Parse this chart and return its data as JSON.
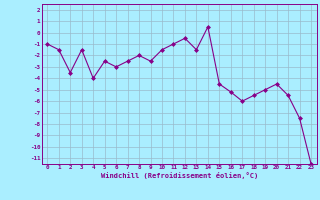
{
  "xlabel": "Windchill (Refroidissement éolien,°C)",
  "x_values": [
    0,
    1,
    2,
    3,
    4,
    5,
    6,
    7,
    8,
    9,
    10,
    11,
    12,
    13,
    14,
    15,
    16,
    17,
    18,
    19,
    20,
    21,
    22,
    23
  ],
  "y_values": [
    -1.0,
    -1.5,
    -3.5,
    -1.5,
    -4.0,
    -2.5,
    -3.0,
    -2.5,
    -2.0,
    -2.5,
    -1.5,
    -1.0,
    -0.5,
    -1.5,
    0.5,
    -4.5,
    -5.2,
    -6.0,
    -5.5,
    -5.0,
    -4.5,
    -5.5,
    -7.5,
    -11.5
  ],
  "line_color": "#880088",
  "marker": "D",
  "marker_size": 2,
  "bg_color": "#aaeeff",
  "grid_color": "#99bbcc",
  "ylim": [
    -11.5,
    2.5
  ],
  "ytick_vals": [
    2,
    1,
    0,
    -1,
    -2,
    -3,
    -4,
    -5,
    -6,
    -7,
    -8,
    -9,
    -10,
    -11
  ],
  "ytick_labels": [
    "2",
    "1",
    "0",
    "-1",
    "-2",
    "-3",
    "-4",
    "-5",
    "-6",
    "-7",
    "-8",
    "-9",
    "-10",
    "-11"
  ],
  "xlim": [
    -0.5,
    23.5
  ],
  "xticks": [
    0,
    1,
    2,
    3,
    4,
    5,
    6,
    7,
    8,
    9,
    10,
    11,
    12,
    13,
    14,
    15,
    16,
    17,
    18,
    19,
    20,
    21,
    22,
    23
  ]
}
